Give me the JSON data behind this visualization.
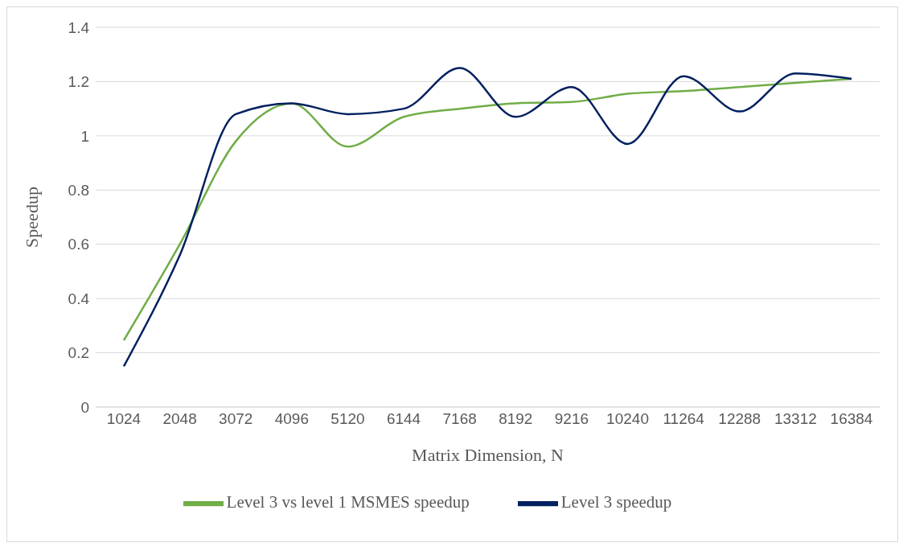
{
  "chart_data": {
    "type": "line",
    "xlabel": "Matrix Dimension, N",
    "ylabel": "Speedup",
    "categories": [
      "1024",
      "2048",
      "3072",
      "4096",
      "5120",
      "6144",
      "7168",
      "8192",
      "9216",
      "10240",
      "11264",
      "12288",
      "13312",
      "16384"
    ],
    "series": [
      {
        "name": "Level 3 vs level 1 MSMES speedup",
        "color": "#70ad47",
        "values": [
          0.246,
          0.6,
          0.98,
          1.12,
          0.96,
          1.07,
          1.1,
          1.12,
          1.125,
          1.155,
          1.165,
          1.18,
          1.195,
          1.21
        ]
      },
      {
        "name": "Level 3 speedup",
        "color": "#002060",
        "values": [
          0.15,
          0.56,
          1.08,
          1.12,
          1.08,
          1.1,
          1.25,
          1.07,
          1.18,
          0.97,
          1.22,
          1.09,
          1.23,
          1.21
        ]
      }
    ],
    "ylim": [
      0,
      1.4
    ],
    "yticks": [
      0,
      0.2,
      0.4,
      0.6,
      0.8,
      1,
      1.2,
      1.4
    ],
    "grid": "y",
    "legend": "bottom",
    "marker": "none",
    "line_style": "solid"
  }
}
